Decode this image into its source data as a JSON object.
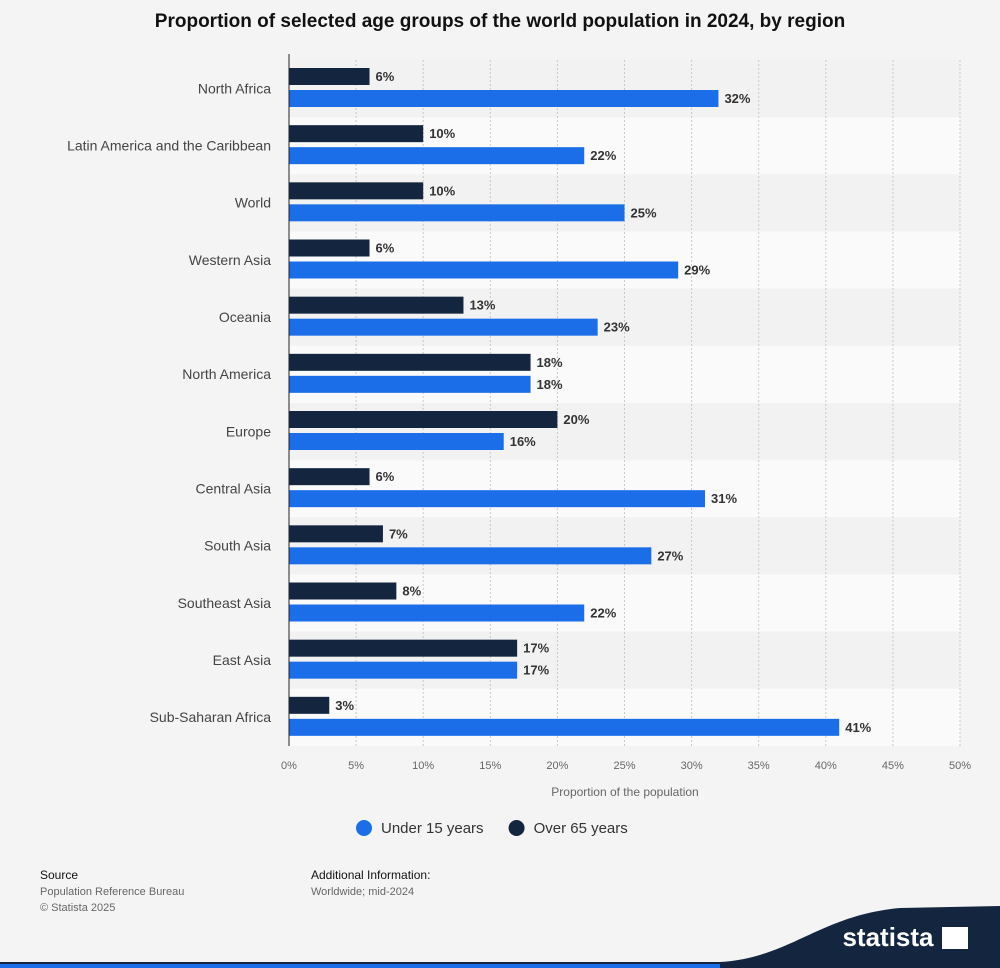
{
  "chart_data": {
    "type": "hbar",
    "title": "Proportion of selected age groups of the world population in 2024, by region",
    "x_label": "Proportion of the population",
    "categories": [
      "North Africa",
      "Latin America and the Caribbean",
      "World",
      "Western Asia",
      "Oceania",
      "North America",
      "Europe",
      "Central Asia",
      "South Asia",
      "Southeast Asia",
      "East Asia",
      "Sub-Saharan Africa"
    ],
    "series": [
      {
        "name": "Under 15 years",
        "color": "#1b6ee8",
        "values": [
          32,
          22,
          25,
          29,
          23,
          18,
          16,
          31,
          27,
          22,
          17,
          41
        ],
        "value_labels": [
          "32%",
          "22%",
          "25%",
          "29%",
          "23%",
          "18%",
          "16%",
          "31%",
          "27%",
          "22%",
          "17%",
          "41%"
        ]
      },
      {
        "name": "Over 65 years",
        "color": "#14263f",
        "values": [
          6,
          10,
          10,
          6,
          13,
          18,
          20,
          6,
          7,
          8,
          17,
          3
        ],
        "value_labels": [
          "6%",
          "10%",
          "10%",
          "6%",
          "13%",
          "18%",
          "20%",
          "6%",
          "7%",
          "8%",
          "17%",
          "3%"
        ]
      }
    ],
    "xlim": [
      0,
      50
    ],
    "xticks": [
      {
        "value": 0,
        "label": "0%"
      },
      {
        "value": 5,
        "label": "5%"
      },
      {
        "value": 10,
        "label": "10%"
      },
      {
        "value": 15,
        "label": "15%"
      },
      {
        "value": 20,
        "label": "20%"
      },
      {
        "value": 25,
        "label": "25%"
      },
      {
        "value": 30,
        "label": "30%"
      },
      {
        "value": 35,
        "label": "35%"
      },
      {
        "value": 40,
        "label": "40%"
      },
      {
        "value": 45,
        "label": "45%"
      },
      {
        "value": 50,
        "label": "50%"
      }
    ],
    "grid": true,
    "legend": "bottom"
  },
  "footer": {
    "source_title": "Source",
    "source": "Population Reference Bureau",
    "copyright": "© Statista 2025",
    "info_title": "Additional Information:",
    "info": "Worldwide; mid-2024",
    "brand": "statista"
  }
}
